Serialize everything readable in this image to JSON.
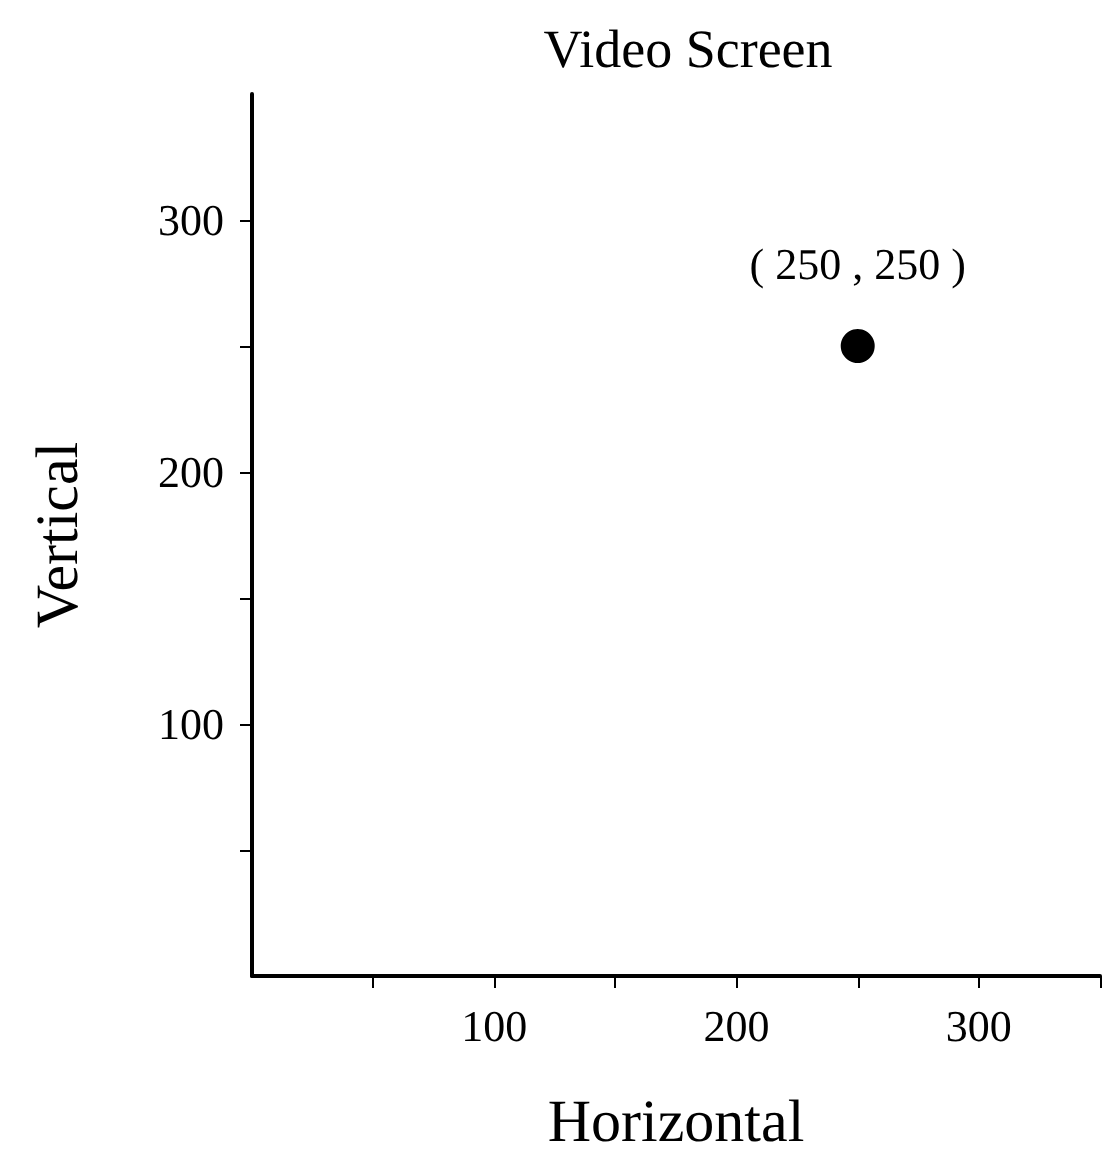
{
  "chart_data": {
    "type": "scatter",
    "title": "Video Screen",
    "xlabel": "Horizontal",
    "ylabel": "Vertical",
    "x": [
      250
    ],
    "series": [
      {
        "color": "#000000",
        "values": [
          250
        ]
      }
    ],
    "xlim": [
      0,
      350
    ],
    "ylim": [
      0,
      350
    ],
    "xticks": [
      {
        "value": 50,
        "label": null
      },
      100,
      {
        "value": 150,
        "label": null
      },
      200,
      {
        "value": 250,
        "label": null
      },
      300,
      {
        "value": 350,
        "label": null
      }
    ],
    "yticks": [
      {
        "value": 50,
        "label": null
      },
      100,
      {
        "value": 150,
        "label": null
      },
      200,
      {
        "value": 250,
        "label": null
      },
      300
    ],
    "annotations": [
      {
        "text": "( 250 , 250 )",
        "x": 250,
        "y": 250
      }
    ],
    "marker": "circle"
  }
}
